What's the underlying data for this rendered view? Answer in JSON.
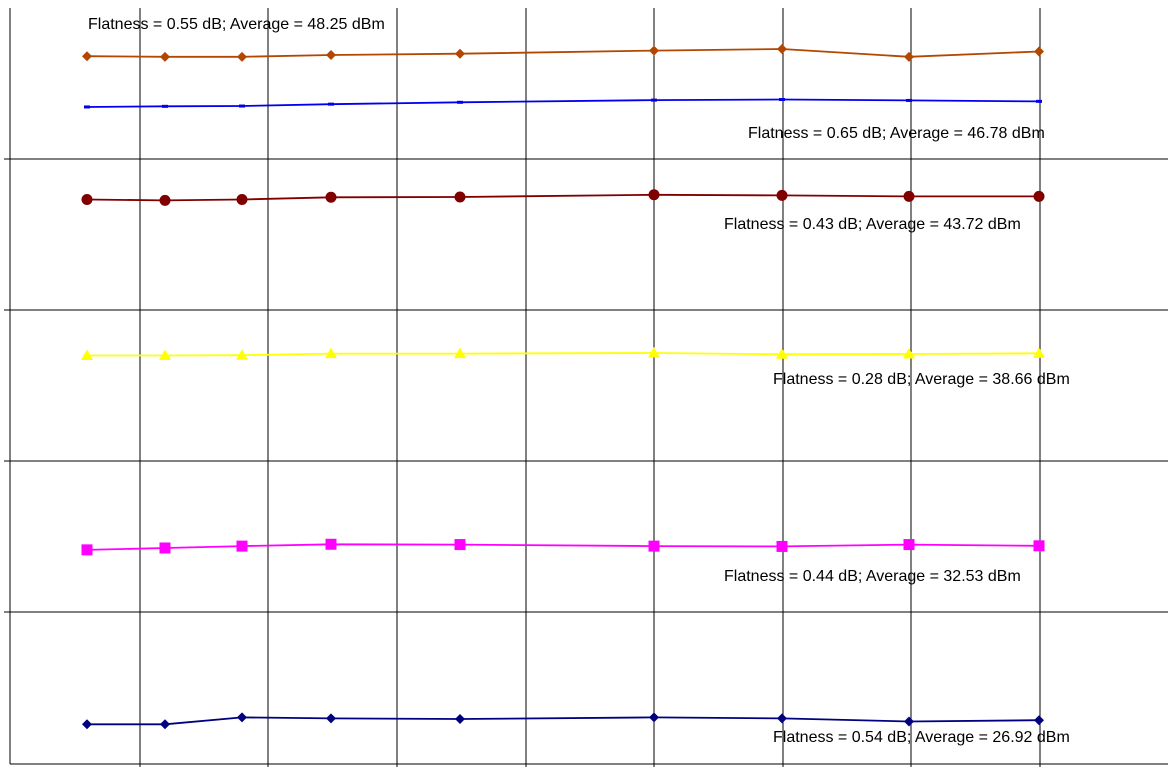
{
  "chart_data": {
    "type": "line",
    "title": "",
    "xlabel": "",
    "ylabel": "",
    "x": [
      1,
      2,
      3,
      4,
      5,
      6,
      7,
      8,
      9
    ],
    "grid": true,
    "legend": "none",
    "series": [
      {
        "values": [
          48.23,
          48.21,
          48.21,
          48.27,
          48.31,
          48.41,
          48.46,
          48.21,
          48.38
        ],
        "marker": "diamond",
        "color": "#b34700",
        "annotation": "Flatness = 0.55 dB; Average = 48.25 dBm"
      },
      {
        "values": [
          46.6,
          46.62,
          46.63,
          46.69,
          46.75,
          46.82,
          46.84,
          46.81,
          46.78
        ],
        "marker": "dash",
        "color": "#0000ee",
        "annotation": "Flatness = 0.65 dB; Average = 46.78 dBm"
      },
      {
        "values": [
          43.63,
          43.6,
          43.63,
          43.7,
          43.71,
          43.78,
          43.76,
          43.73,
          43.73
        ],
        "marker": "circle",
        "color": "#800000",
        "annotation": "Flatness = 0.43 dB; Average = 43.72 dBm"
      },
      {
        "values": [
          38.62,
          38.62,
          38.63,
          38.68,
          38.68,
          38.7,
          38.66,
          38.67,
          38.69
        ],
        "marker": "triangle",
        "color": "#ffff00",
        "annotation": "Flatness = 0.28 dB; Average = 38.66 dBm"
      },
      {
        "values": [
          32.38,
          32.44,
          32.5,
          32.56,
          32.55,
          32.5,
          32.49,
          32.55,
          32.51
        ],
        "marker": "square",
        "color": "#ff00ff",
        "annotation": "Flatness = 0.44 dB; Average = 32.53 dBm"
      },
      {
        "values": [
          26.78,
          26.78,
          27.0,
          26.97,
          26.95,
          27.0,
          26.97,
          26.87,
          26.91
        ],
        "marker": "diamond",
        "color": "#000080",
        "annotation": "Flatness = 0.54 dB; Average = 26.92 dBm"
      }
    ]
  }
}
